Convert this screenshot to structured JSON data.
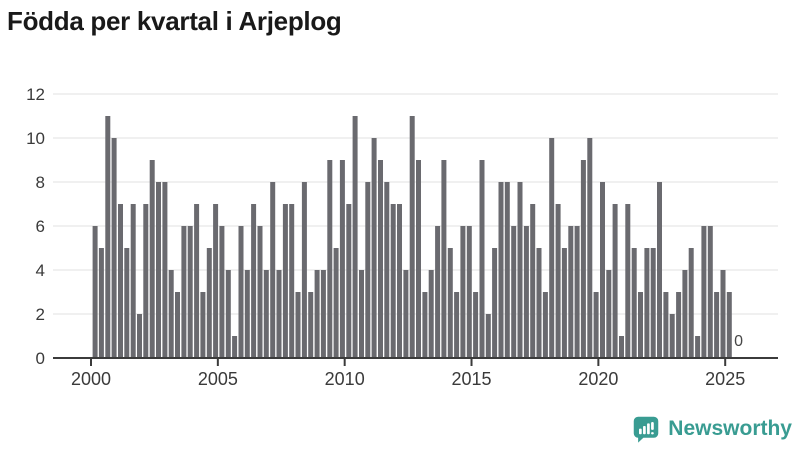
{
  "title": "Födda per kvartal i Arjeplog",
  "chart_data": {
    "type": "bar",
    "title": "Födda per kvartal i Arjeplog",
    "xlabel": "",
    "ylabel": "",
    "ylim": [
      0,
      12
    ],
    "yticks": [
      0,
      2,
      4,
      6,
      8,
      10,
      12
    ],
    "xticks": [
      2000,
      2005,
      2010,
      2015,
      2020,
      2025
    ],
    "grid": "horizontal",
    "legend": "none",
    "bar_color": "#6a6a6f",
    "start_year": 2000,
    "periodicity": "quarterly",
    "values_by_year": {
      "2000": [
        6,
        5,
        11,
        10
      ],
      "2001": [
        7,
        5,
        7,
        2
      ],
      "2002": [
        7,
        9,
        8,
        8
      ],
      "2003": [
        4,
        3,
        6,
        6
      ],
      "2004": [
        7,
        3,
        5,
        7
      ],
      "2005": [
        6,
        4,
        1,
        6
      ],
      "2006": [
        4,
        7,
        6,
        4
      ],
      "2007": [
        8,
        4,
        7,
        7
      ],
      "2008": [
        3,
        8,
        3,
        4
      ],
      "2009": [
        4,
        9,
        5,
        9
      ],
      "2010": [
        7,
        11,
        4,
        8
      ],
      "2011": [
        10,
        9,
        8,
        7
      ],
      "2012": [
        7,
        4,
        11,
        9
      ],
      "2013": [
        3,
        4,
        6,
        9
      ],
      "2014": [
        5,
        3,
        6,
        6
      ],
      "2015": [
        3,
        9,
        2,
        5
      ],
      "2016": [
        8,
        8,
        6,
        8
      ],
      "2017": [
        6,
        7,
        5,
        3
      ],
      "2018": [
        10,
        7,
        5,
        6
      ],
      "2019": [
        6,
        9,
        10,
        3
      ],
      "2020": [
        8,
        4,
        7,
        1
      ],
      "2021": [
        7,
        5,
        3,
        5
      ],
      "2022": [
        5,
        8,
        3,
        2
      ],
      "2023": [
        3,
        4,
        5,
        1
      ],
      "2024": [
        6,
        6,
        3,
        4
      ],
      "2025": [
        3,
        0
      ]
    },
    "annotation": {
      "text": "0",
      "target": "2025 Q2"
    }
  },
  "logo": {
    "text": "Newsworthy",
    "color": "#399c92",
    "icon": "newsworthy-bar-chart-bubble-icon"
  }
}
